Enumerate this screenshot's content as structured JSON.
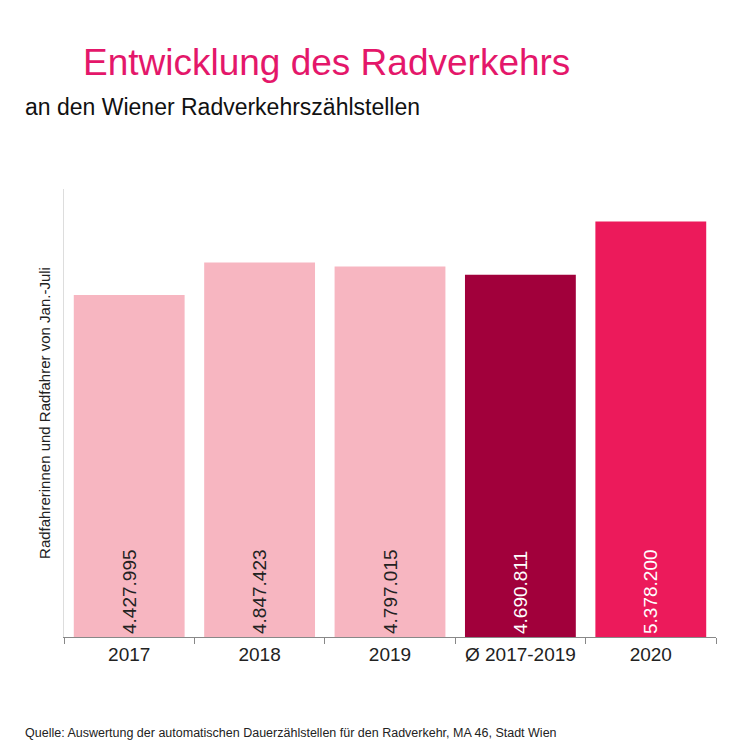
{
  "chart_data": {
    "type": "bar",
    "title": "Entwicklung des Radverkehrs",
    "subtitle": "an den Wiener Radverkehrszählstellen",
    "y_label": "Radfahrerinnen und Radfahrer von Jan.-Juli",
    "source": "Quelle: Auswertung der automatischen Dauerzählstellen für den Radverkehr, MA 46, Stadt Wien",
    "categories": [
      "2017",
      "2018",
      "2019",
      "Ø 2017-2019",
      "2020"
    ],
    "values": [
      4427995,
      4847423,
      4797015,
      4690811,
      5378200
    ],
    "value_labels": [
      "4.427.995",
      "4.847.423",
      "4.797.015",
      "4.690.811",
      "5.378.200"
    ],
    "colors": [
      "#f7b6c1",
      "#f7b6c1",
      "#f7b6c1",
      "#a1003b",
      "#ec1a5b"
    ],
    "ylim": [
      0,
      5800000
    ],
    "yticks": [],
    "grid": false,
    "data_labels": true,
    "tick_labels": "x"
  }
}
